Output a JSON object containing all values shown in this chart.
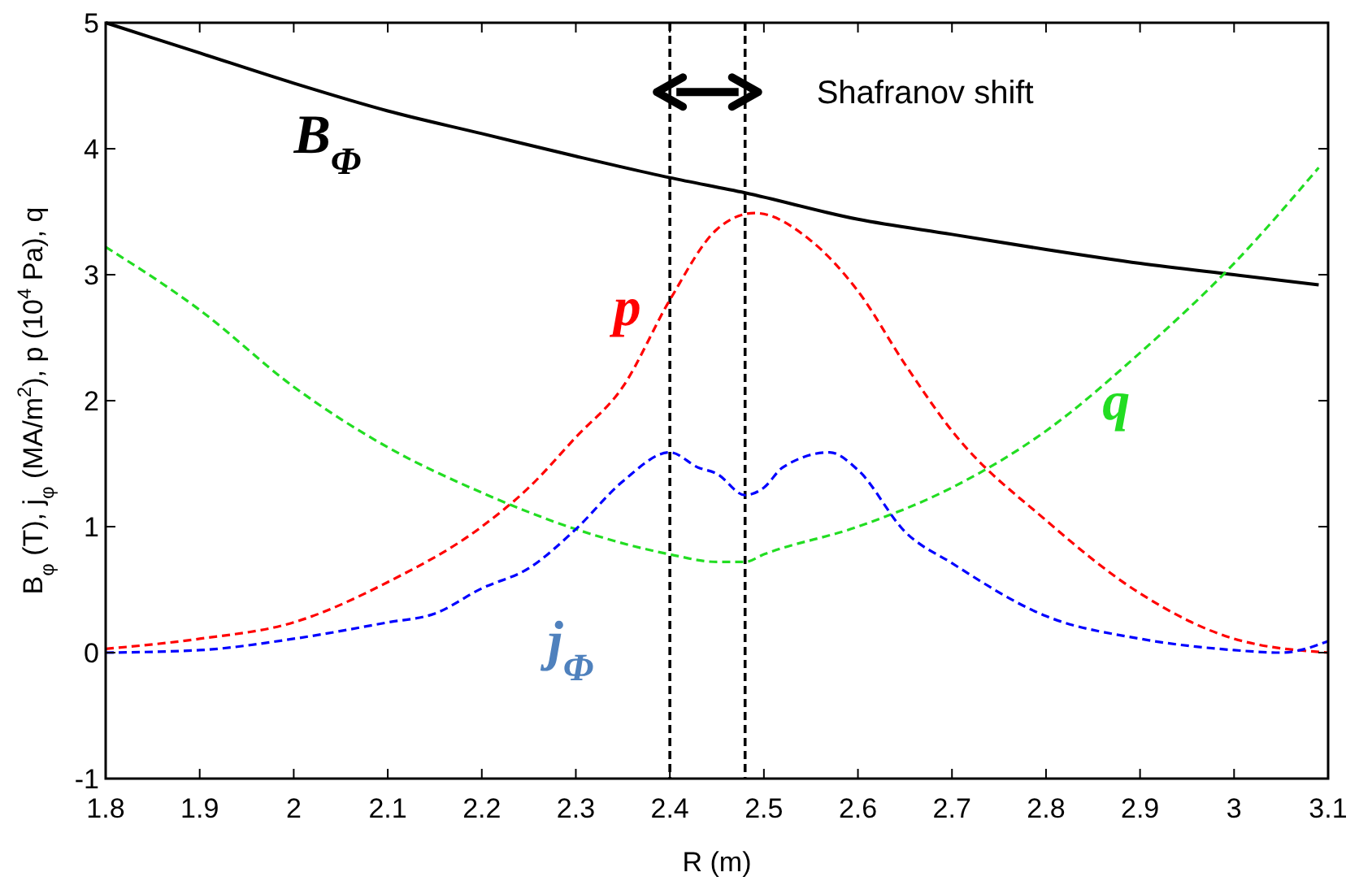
{
  "chart_data": {
    "type": "line",
    "xlabel": "R (m)",
    "ylabel": "B$_{φ}$  (T),  j$_{φ}$  (MA/m$^{2}$),  p (10$^{4}$ Pa),  q",
    "xlim": [
      1.8,
      3.1
    ],
    "xticks": [
      1.8,
      1.9,
      2,
      2.1,
      2.2,
      2.3,
      2.4,
      2.5,
      2.6,
      2.7,
      2.8,
      2.9,
      3,
      3.1
    ],
    "ylim": [
      -1,
      5
    ],
    "yticks": [
      -1,
      0,
      1,
      2,
      3,
      4,
      5
    ],
    "grid": false,
    "marker": "none",
    "series": [
      {
        "name": "B$_{Φ}$",
        "color": "#000000",
        "line_style": "solid",
        "x": [
          1.8,
          1.9,
          2.0,
          2.1,
          2.2,
          2.3,
          2.4,
          2.48,
          2.6,
          2.7,
          2.8,
          2.9,
          3.0,
          3.09
        ],
        "values": [
          5.0,
          4.76,
          4.52,
          4.3,
          4.12,
          3.94,
          3.77,
          3.65,
          3.44,
          3.32,
          3.2,
          3.09,
          3.0,
          2.92
        ]
      },
      {
        "name": "p",
        "color": "#ff0000",
        "line_style": "dashed",
        "x": [
          1.8,
          1.9,
          2.0,
          2.1,
          2.2,
          2.25,
          2.3,
          2.35,
          2.4,
          2.45,
          2.49,
          2.55,
          2.6,
          2.65,
          2.7,
          2.8,
          2.9,
          3.0,
          3.1
        ],
        "values": [
          0.03,
          0.11,
          0.24,
          0.56,
          1.0,
          1.31,
          1.71,
          2.11,
          2.8,
          3.36,
          3.49,
          3.27,
          2.87,
          2.29,
          1.76,
          1.05,
          0.47,
          0.11,
          0.0
        ]
      },
      {
        "name": "q",
        "color": "#22dd22",
        "line_style": "dashed",
        "x": [
          1.8,
          1.9,
          2.0,
          2.1,
          2.2,
          2.3,
          2.4,
          2.45,
          2.48,
          2.5,
          2.6,
          2.7,
          2.8,
          2.9,
          3.0,
          3.09
        ],
        "values": [
          3.22,
          2.72,
          2.11,
          1.63,
          1.27,
          0.98,
          0.78,
          0.72,
          0.72,
          0.78,
          1.0,
          1.31,
          1.76,
          2.38,
          3.09,
          3.85
        ]
      },
      {
        "name": "j$_{Φ}$",
        "color": "#0000ff",
        "line_style": "dashed",
        "x": [
          1.8,
          1.9,
          2.0,
          2.1,
          2.15,
          2.2,
          2.25,
          2.3,
          2.35,
          2.4,
          2.43,
          2.45,
          2.48,
          2.5,
          2.52,
          2.57,
          2.6,
          2.65,
          2.7,
          2.8,
          2.9,
          3.0,
          3.05,
          3.1
        ],
        "values": [
          0.0,
          0.02,
          0.11,
          0.24,
          0.31,
          0.51,
          0.67,
          0.98,
          1.36,
          1.59,
          1.47,
          1.42,
          1.25,
          1.31,
          1.47,
          1.59,
          1.45,
          0.96,
          0.71,
          0.29,
          0.11,
          0.02,
          0.0,
          0.09
        ]
      }
    ],
    "ref_lines": [
      {
        "axis": "x",
        "value": 2.4,
        "color": "#000000",
        "line_style": "dashed"
      },
      {
        "axis": "x",
        "value": 2.48,
        "color": "#000000",
        "line_style": "dashed"
      }
    ],
    "annotations": [
      "Shafranov shift"
    ]
  }
}
